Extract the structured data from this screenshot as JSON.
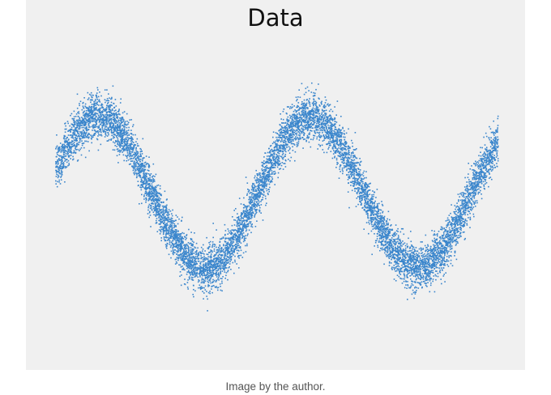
{
  "chart_data": {
    "type": "scatter",
    "title": "Data",
    "xlabel": "",
    "ylabel": "",
    "grid": false,
    "axes_visible": false,
    "legend": "none",
    "point_color": "#3b86cc",
    "series": [
      {
        "name": "",
        "description_points": "dense noisy sine wave, about 1.9 cycles",
        "x": [
          0.0,
          0.5,
          1.0,
          1.5,
          2.0,
          2.5,
          3.0,
          3.5,
          4.0,
          4.5,
          5.0,
          5.5,
          6.0,
          6.5,
          7.0,
          7.5,
          8.0,
          8.5,
          9.0,
          9.5,
          10.0,
          10.5,
          11.0,
          11.5,
          12.0
        ],
        "y": [
          0.32,
          0.73,
          0.98,
          0.93,
          0.6,
          0.1,
          -0.41,
          -0.81,
          -1.0,
          -0.86,
          -0.5,
          0.02,
          0.53,
          0.88,
          0.99,
          0.77,
          0.36,
          -0.15,
          -0.62,
          -0.93,
          -0.97,
          -0.74,
          -0.28,
          0.22,
          0.66
        ]
      }
    ],
    "xlim": [
      0,
      12
    ],
    "ylim": [
      -1.6,
      1.6
    ],
    "noise_sd": 0.14
  },
  "caption": "Image by the author."
}
